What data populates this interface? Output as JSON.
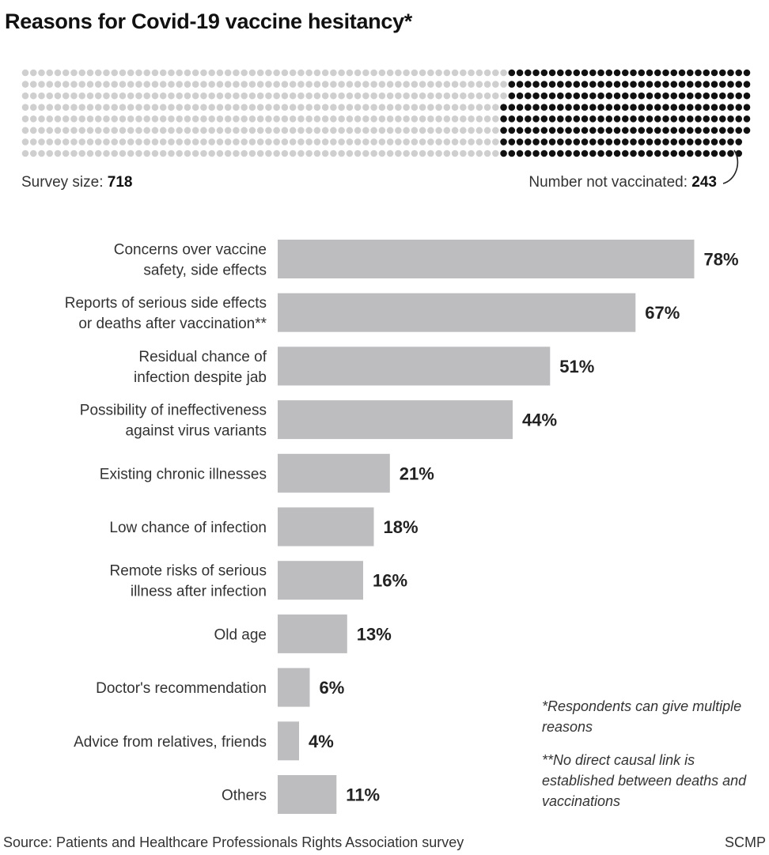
{
  "title": "Reasons for Covid-19 vaccine hesitancy*",
  "survey": {
    "size_label": "Survey size: ",
    "size_value": "718",
    "not_vaccinated_label": "Number not vaccinated: ",
    "not_vaccinated_value": "243"
  },
  "dot_matrix": {
    "total": 718,
    "highlighted": 243,
    "color_other": "#cfcfcf",
    "color_highlight": "#111111"
  },
  "chart_data": {
    "type": "bar",
    "orientation": "horizontal",
    "categories": [
      [
        "Concerns over vaccine",
        "safety, side effects"
      ],
      [
        "Reports of serious side effects",
        "or deaths after vaccination**"
      ],
      [
        "Residual chance of",
        "infection despite jab"
      ],
      [
        "Possibility of ineffectiveness",
        "against virus variants"
      ],
      [
        "Existing chronic illnesses"
      ],
      [
        "Low chance of infection"
      ],
      [
        "Remote risks of serious",
        "illness after infection"
      ],
      [
        "Old age"
      ],
      [
        "Doctor's recommendation"
      ],
      [
        "Advice from relatives, friends"
      ],
      [
        "Others"
      ]
    ],
    "values": [
      78,
      67,
      51,
      44,
      21,
      18,
      16,
      13,
      6,
      4,
      11
    ],
    "value_labels": [
      "78%",
      "67%",
      "51%",
      "44%",
      "21%",
      "18%",
      "16%",
      "13%",
      "6%",
      "4%",
      "11%"
    ],
    "bar_color": "#bdbdbf",
    "unit": "%"
  },
  "notes": {
    "note1": "*Respondents can give multiple reasons",
    "note2": "**No direct causal link is established between deaths and vaccinations"
  },
  "source": "Source: Patients and Healthcare Professionals Rights Association survey",
  "credit": "SCMP"
}
